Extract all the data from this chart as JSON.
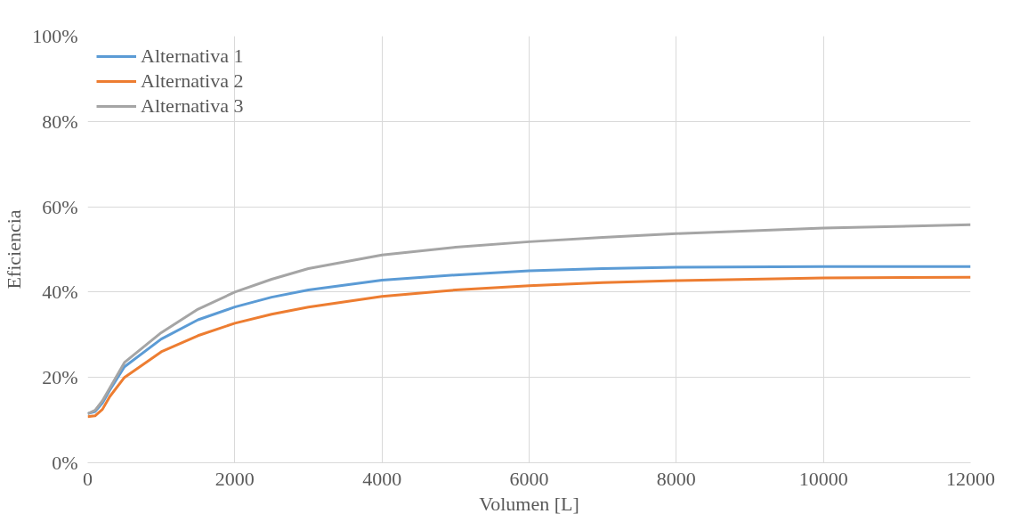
{
  "chart_data": {
    "type": "line",
    "xlabel": "Volumen [L]",
    "ylabel": "Eficiencia",
    "x": [
      0,
      100,
      200,
      300,
      500,
      1000,
      1500,
      2000,
      2500,
      3000,
      4000,
      5000,
      6000,
      7000,
      8000,
      10000,
      12000
    ],
    "series": [
      {
        "name": "Alternativa 1",
        "color": "#5b9bd5",
        "values": [
          11.5,
          12,
          14,
          17,
          22.5,
          29,
          33.5,
          36.5,
          38.8,
          40.5,
          42.8,
          44,
          45,
          45.5,
          45.8,
          46,
          46
        ]
      },
      {
        "name": "Alternativa 2",
        "color": "#ed7d31",
        "values": [
          10.8,
          11,
          12.5,
          15.5,
          20,
          26,
          29.8,
          32.7,
          34.8,
          36.5,
          39,
          40.5,
          41.5,
          42.2,
          42.7,
          43.3,
          43.5
        ]
      },
      {
        "name": "Alternativa 3",
        "color": "#a5a5a5",
        "values": [
          11.5,
          12.3,
          14.5,
          17.5,
          23.5,
          30.5,
          36,
          40,
          43,
          45.5,
          48.7,
          50.5,
          51.8,
          52.8,
          53.7,
          55,
          55.8
        ]
      }
    ],
    "xlim": [
      0,
      12000
    ],
    "xticks": [
      0,
      2000,
      4000,
      6000,
      8000,
      10000,
      12000
    ],
    "ylim": [
      0,
      100
    ],
    "yticks": [
      {
        "value": 0,
        "label": "0%"
      },
      {
        "value": 20,
        "label": "20%"
      },
      {
        "value": 40,
        "label": "40%"
      },
      {
        "value": 60,
        "label": "60%"
      },
      {
        "value": 80,
        "label": "80%"
      },
      {
        "value": 100,
        "label": "100%"
      }
    ],
    "grid": true,
    "legend": "top left",
    "marker": "none",
    "line_style": "solid"
  }
}
